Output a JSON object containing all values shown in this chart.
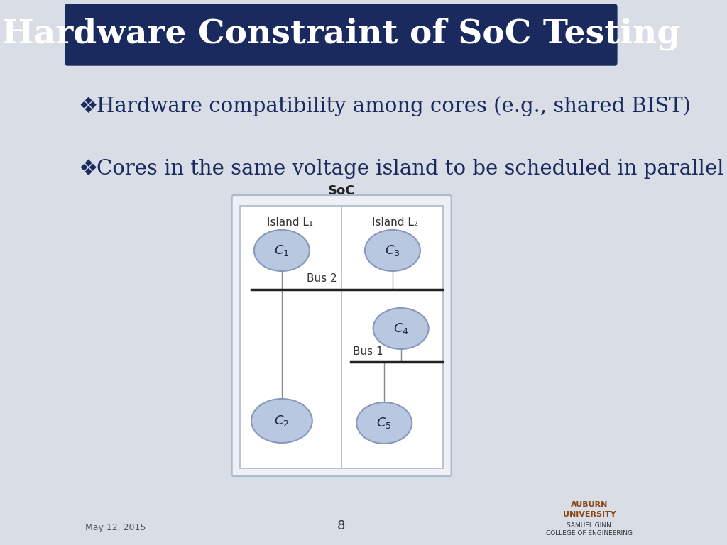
{
  "title": "Hardware Constraint of SoC Testing",
  "title_bg": "#1a2a5e",
  "title_color": "#ffffff",
  "bg_color": "#d8dde6",
  "bullet1": "Hardware compatibility among cores (e.g., shared BIST)",
  "bullet2": "Cores in the same voltage island to be scheduled in parallel",
  "bullet_color": "#1a2a5e",
  "diamond_color": "#1a2a5e",
  "soc_label": "SoC",
  "island_l1_label": "Island L₁",
  "island_l2_label": "Island L₂",
  "bus2_label": "Bus 2",
  "bus1_label": "Bus 1",
  "cores": [
    "C₁",
    "C₂",
    "C₃",
    "C₄",
    "C₅"
  ],
  "ellipse_fill": "#b8c8e0",
  "ellipse_edge": "#8899bb",
  "diagram_bg": "#eef0f5",
  "inner_bg": "#ffffff",
  "page_num": "8",
  "date": "May 12, 2015",
  "auburn_text": "AUBURN\nUNIVERSITY",
  "samuel_text": "SAMUEL GINN\nCOLLEGE OF ENGINEERING"
}
